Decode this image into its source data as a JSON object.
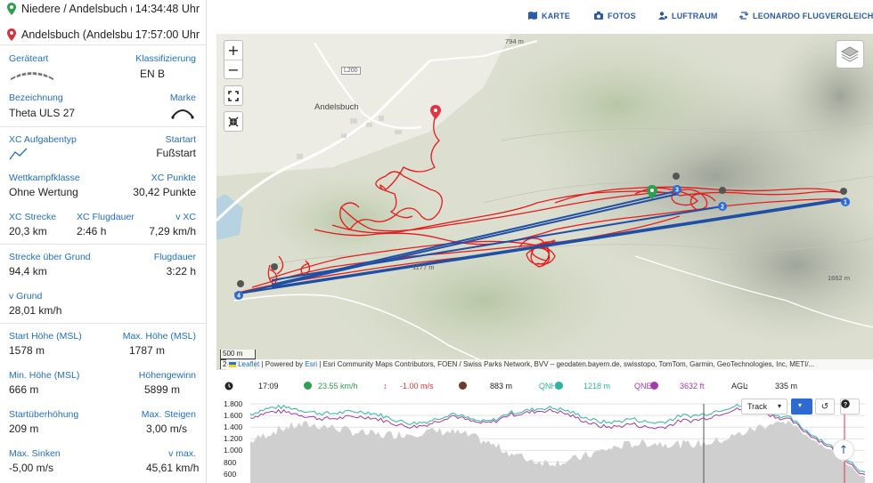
{
  "waypoints": [
    {
      "name": "Niedere / Andelsbuch (V...",
      "time": "14:34:48 Uhr",
      "color": "#2e9e4f"
    },
    {
      "name": "Andelsbuch (Andelsbuch...",
      "time": "17:57:00 Uhr",
      "color": "#d9303e"
    }
  ],
  "details": {
    "geraeteart_label": "Geräteart",
    "klassifizierung_label": "Klassifizierung",
    "klassifizierung_value": "EN B",
    "bezeichnung_label": "Bezeichnung",
    "bezeichnung_value": "Theta ULS 27",
    "marke_label": "Marke",
    "aufgabentyp_label": "XC Aufgabentyp",
    "startart_label": "Startart",
    "startart_value": "Fußstart",
    "wettkampf_label": "Wettkampfklasse",
    "wettkampf_value": "Ohne Wertung",
    "xc_punkte_label": "XC Punkte",
    "xc_punkte_value": "30,42 Punkte",
    "xc_strecke_label": "XC Strecke",
    "xc_strecke_value": "20,3 km",
    "xc_flugdauer_label": "XC Flugdauer",
    "xc_flugdauer_value": "2:46 h",
    "v_xc_label": "v XC",
    "v_xc_value": "7,29 km/h",
    "strecke_grund_label": "Strecke über Grund",
    "strecke_grund_value": "94,4 km",
    "flugdauer_label": "Flugdauer",
    "flugdauer_value": "3:22 h",
    "v_grund_label": "v Grund",
    "v_grund_value": "28,01 km/h",
    "start_hoehe_label": "Start Höhe (MSL)",
    "start_hoehe_value": "1578 m",
    "max_hoehe_label": "Max. Höhe (MSL)",
    "max_hoehe_value": "1787 m",
    "min_hoehe_label": "Min. Höhe (MSL)",
    "min_hoehe_value": "666 m",
    "hoehengewinn_label": "Höhengewinn",
    "hoehengewinn_value": "5899 m",
    "startueberhoehung_label": "Startüberhöhung",
    "startueberhoehung_value": "209 m",
    "max_steigen_label": "Max. Steigen",
    "max_steigen_value": "3,00 m/s",
    "max_sinken_label": "Max. Sinken",
    "max_sinken_value": "-5,00 m/s",
    "vmax_label": "v max.",
    "vmax_value": "45,61 km/h"
  },
  "nav": {
    "karte": "KARTE",
    "fotos": "FOTOS",
    "luftraum": "LUFTRAUM",
    "leonardo": "LEONARDO FLUGVERGLEICH"
  },
  "map": {
    "zoom_in": "+",
    "zoom_out": "−",
    "place_andelsbuch": "Andelsbuch",
    "road_l200": "L200",
    "spot_794": "794 m",
    "spot_1177": "1177 m",
    "spot_1662": "1662 m",
    "scale_m": "500 m",
    "scale_ft": "2000 ft",
    "attr_leaflet": "Leaflet",
    "attr_powered": "| Powered by",
    "attr_esri": "Esri",
    "attr_rest": "| Esri Community Maps Contributors, FOEN / Swiss Parks Network, BVV – geodaten.bayern.de, swisstopo, TomTom, Garmin, GeoTechnologies, Inc, METI/...",
    "turnpoints": [
      "1",
      "2",
      "3",
      "4"
    ]
  },
  "status": {
    "time": "17:09",
    "speed": "23.55 km/h",
    "vario": "-1.00 m/s",
    "alt": "883 m",
    "qnh_label": "QNH",
    "qnh_value": "1218 m",
    "qne_label": "QNE",
    "qne_value": "3632 ft",
    "agl_label": "AGL",
    "agl_value": "335 m"
  },
  "profile": {
    "y_labels": [
      "1.800",
      "1.600",
      "1.400",
      "1.200",
      "1.000",
      "800",
      "600"
    ],
    "track_select": "Track",
    "colors": {
      "track": "#2fb59a",
      "ground_alt": "#a23aa7",
      "terrain": "#cfcfcf"
    }
  }
}
